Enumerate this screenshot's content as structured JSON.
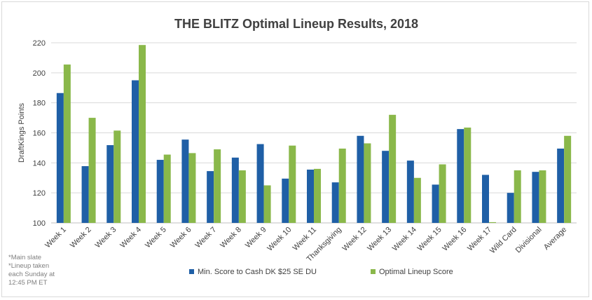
{
  "chart_data": {
    "type": "bar",
    "title": "THE BLITZ Optimal Lineup Results, 2018",
    "xlabel": "",
    "ylabel": "DraftKings Points",
    "ylim": [
      100,
      220
    ],
    "yticks": [
      100,
      120,
      140,
      160,
      180,
      200,
      220
    ],
    "grid": true,
    "legend_position": "bottom",
    "categories": [
      "Week 1",
      "Week 2",
      "Week 3",
      "Week 4",
      "Week 5",
      "Week 6",
      "Week 7",
      "Week 8",
      "Week 9",
      "Week 10",
      "Week 11",
      "Thanksgiving",
      "Week 12",
      "Week 13",
      "Week 14",
      "Week 15",
      "Week 16",
      "Week 17",
      "Wild Card",
      "Divisional",
      "Average"
    ],
    "series": [
      {
        "name": "Min. Score to Cash DK $25 SE DU",
        "color": "#1f5fa6",
        "values": [
          186.5,
          137.8,
          151.8,
          195,
          142,
          155.5,
          134.5,
          143.5,
          152.5,
          129.5,
          135.5,
          127,
          158,
          148,
          141.5,
          125.5,
          162.5,
          132,
          120,
          134,
          149.5
        ]
      },
      {
        "name": "Optimal Lineup Score",
        "color": "#8ab84a",
        "values": [
          205.5,
          170,
          161.5,
          218.5,
          145.5,
          146.5,
          149,
          135,
          125,
          151.5,
          136,
          149.5,
          153,
          172,
          130,
          139,
          163.5,
          100.5,
          135,
          135,
          158
        ]
      }
    ]
  },
  "notes": [
    "*Main slate",
    "*Lineup taken each Sunday at 12:45 PM ET"
  ]
}
